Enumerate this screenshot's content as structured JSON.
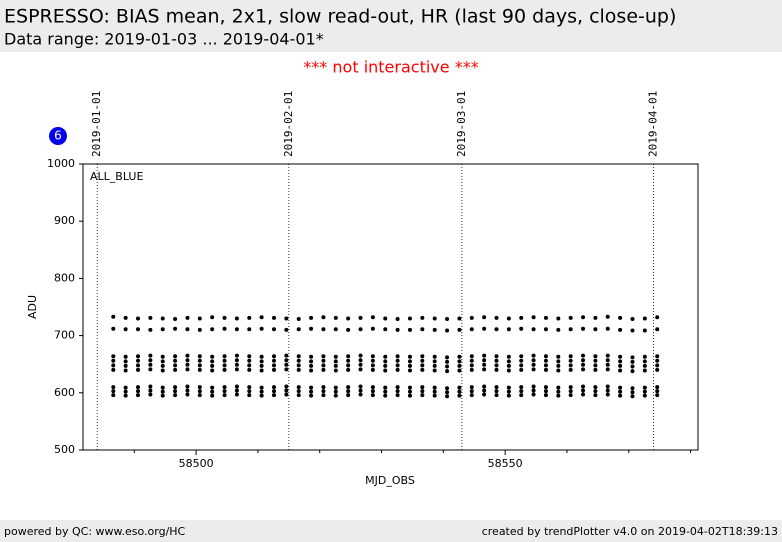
{
  "header": {
    "title": "ESPRESSO: BIAS mean, 2x1, slow read-out, HR (last 90 days, close-up)",
    "subtitle": "Data range: 2019-01-03 ... 2019-04-01*"
  },
  "notice": "*** not interactive ***",
  "badge": "6",
  "footer": {
    "left": "powered by QC: www.eso.org/HC",
    "right": "created by trendPlotter v4.0 on 2019-04-02T18:39:13"
  },
  "chart_data": {
    "type": "scatter",
    "annotation": "ALL_BLUE",
    "x_label": "MJD_OBS",
    "y_label": "ADU",
    "xlim": [
      58481.7,
      58581.2
    ],
    "xticks": [
      58500,
      58550
    ],
    "xminorticks": [
      58490,
      58510,
      58520,
      58530,
      58540,
      58560,
      58570,
      58580
    ],
    "ylim": [
      500,
      1000
    ],
    "yticks": [
      500,
      600,
      700,
      800,
      900,
      1000
    ],
    "markers": [
      {
        "x": 58484,
        "label": "2019-01-01"
      },
      {
        "x": 58515,
        "label": "2019-02-01"
      },
      {
        "x": 58543,
        "label": "2019-03-01"
      },
      {
        "x": 58574,
        "label": "2019-04-01"
      }
    ],
    "x": [
      58486.6,
      58488.6,
      58490.6,
      58492.6,
      58494.6,
      58496.6,
      58498.6,
      58500.6,
      58502.6,
      58504.6,
      58506.6,
      58508.6,
      58510.6,
      58512.6,
      58514.6,
      58516.6,
      58518.6,
      58520.6,
      58522.6,
      58524.6,
      58526.6,
      58528.6,
      58530.6,
      58532.6,
      58534.6,
      58536.6,
      58538.6,
      58540.6,
      58542.6,
      58544.6,
      58546.6,
      58548.6,
      58550.6,
      58552.6,
      58554.6,
      58556.6,
      58558.6,
      58560.6,
      58562.6,
      58564.6,
      58566.6,
      58568.6,
      58570.6,
      58572.6,
      58574.6
    ],
    "series": [
      {
        "color": "#000000",
        "values": [
          733,
          731,
          730,
          731,
          730,
          729,
          731,
          730,
          732,
          731,
          730,
          731,
          732,
          731,
          730,
          729,
          731,
          732,
          731,
          730,
          731,
          732,
          730,
          729,
          730,
          731,
          730,
          729,
          730,
          731,
          732,
          731,
          730,
          731,
          732,
          731,
          730,
          731,
          732,
          731,
          733,
          731,
          729,
          730,
          732
        ]
      },
      {
        "color": "#000000",
        "values": [
          712,
          711,
          711,
          710,
          711,
          712,
          711,
          710,
          711,
          712,
          711,
          711,
          712,
          711,
          710,
          711,
          712,
          711,
          711,
          710,
          711,
          712,
          711,
          710,
          710,
          711,
          710,
          709,
          710,
          711,
          712,
          711,
          711,
          712,
          711,
          711,
          710,
          711,
          712,
          711,
          712,
          710,
          709,
          709,
          711
        ]
      },
      {
        "color": "#000000",
        "values": [
          664,
          663,
          664,
          665,
          663,
          664,
          665,
          664,
          663,
          664,
          665,
          664,
          663,
          664,
          665,
          664,
          663,
          664,
          663,
          664,
          665,
          664,
          663,
          664,
          663,
          664,
          663,
          662,
          663,
          664,
          665,
          664,
          663,
          664,
          665,
          664,
          663,
          664,
          665,
          664,
          665,
          663,
          662,
          663,
          664
        ]
      },
      {
        "color": "#000000",
        "values": [
          656,
          655,
          656,
          657,
          655,
          656,
          657,
          656,
          655,
          656,
          657,
          656,
          655,
          656,
          657,
          656,
          655,
          656,
          655,
          656,
          657,
          656,
          655,
          656,
          655,
          656,
          655,
          654,
          655,
          656,
          657,
          656,
          655,
          656,
          657,
          656,
          655,
          656,
          657,
          656,
          657,
          655,
          654,
          655,
          656
        ]
      },
      {
        "color": "#000000",
        "values": [
          648,
          647,
          648,
          649,
          647,
          648,
          649,
          648,
          647,
          648,
          649,
          648,
          647,
          648,
          649,
          648,
          647,
          648,
          647,
          648,
          649,
          648,
          647,
          648,
          647,
          648,
          647,
          646,
          647,
          648,
          649,
          648,
          647,
          648,
          649,
          648,
          647,
          648,
          649,
          648,
          649,
          647,
          646,
          647,
          648
        ]
      },
      {
        "color": "#000000",
        "values": [
          640,
          639,
          640,
          641,
          639,
          640,
          641,
          640,
          639,
          640,
          641,
          640,
          639,
          640,
          641,
          640,
          639,
          640,
          639,
          640,
          641,
          640,
          639,
          640,
          639,
          640,
          639,
          638,
          639,
          640,
          641,
          640,
          639,
          640,
          641,
          640,
          639,
          640,
          641,
          640,
          641,
          639,
          638,
          639,
          640
        ]
      },
      {
        "color": "#000000",
        "values": [
          610,
          609,
          610,
          611,
          609,
          610,
          611,
          610,
          609,
          610,
          611,
          610,
          609,
          610,
          611,
          610,
          609,
          610,
          609,
          610,
          611,
          610,
          609,
          610,
          609,
          610,
          609,
          608,
          609,
          610,
          611,
          610,
          609,
          610,
          611,
          610,
          609,
          610,
          611,
          610,
          611,
          609,
          608,
          609,
          610
        ]
      },
      {
        "color": "#000000",
        "values": [
          603,
          602,
          603,
          604,
          602,
          603,
          604,
          603,
          602,
          603,
          604,
          603,
          602,
          603,
          604,
          603,
          602,
          603,
          602,
          603,
          604,
          603,
          602,
          603,
          602,
          603,
          602,
          601,
          602,
          603,
          604,
          603,
          602,
          603,
          604,
          603,
          602,
          603,
          604,
          603,
          604,
          602,
          601,
          602,
          603
        ]
      },
      {
        "color": "#000000",
        "values": [
          596,
          595,
          596,
          597,
          595,
          596,
          597,
          596,
          595,
          596,
          597,
          596,
          595,
          596,
          597,
          596,
          595,
          596,
          595,
          596,
          597,
          596,
          595,
          596,
          595,
          596,
          595,
          594,
          595,
          596,
          597,
          596,
          595,
          596,
          597,
          596,
          595,
          596,
          597,
          596,
          597,
          595,
          594,
          595,
          596
        ]
      }
    ]
  }
}
